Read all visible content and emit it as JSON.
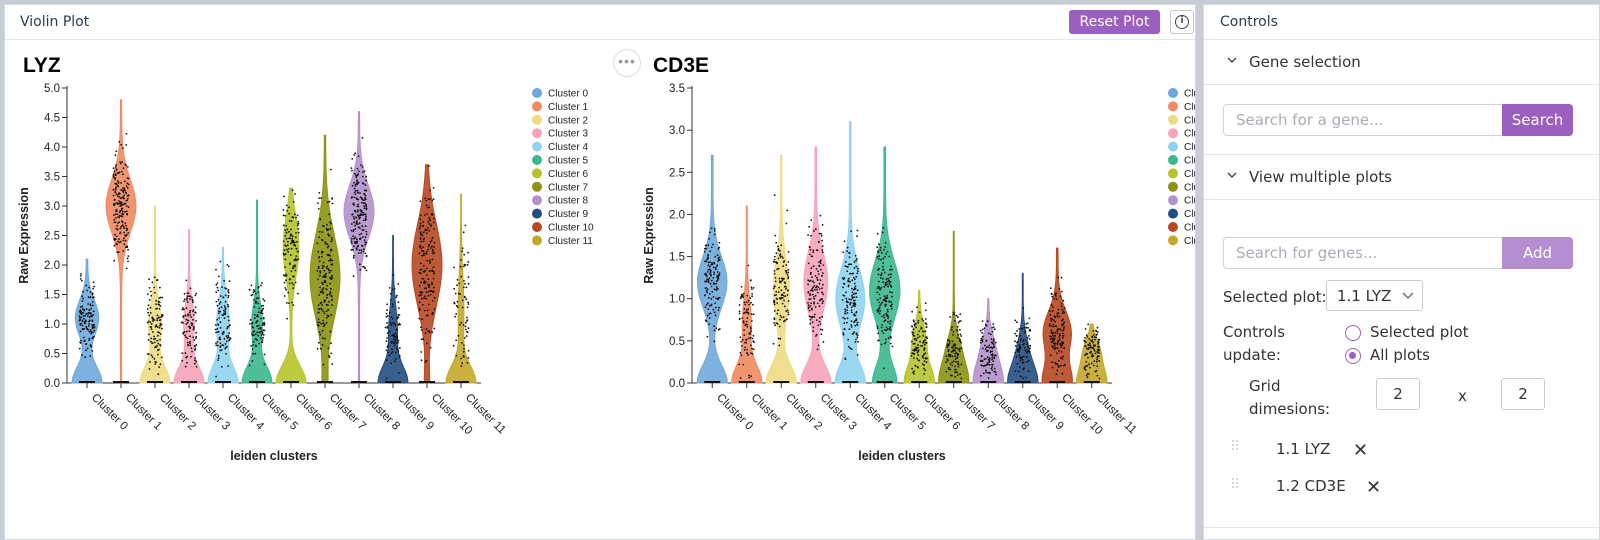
{
  "viewer": {
    "title": "Violin Plot",
    "reset_label": "Reset Plot",
    "info_icon": "info-icon",
    "more_icon": "more-horizontal-icon"
  },
  "controls": {
    "title": "Controls",
    "gene_selection": {
      "label": "Gene selection",
      "search_placeholder": "Search for a gene...",
      "search_label": "Search"
    },
    "multiple_plots": {
      "label": "View multiple plots",
      "search_placeholder": "Search for genes...",
      "add_label": "Add",
      "selected_plot_label": "Selected plot:",
      "selected_plot_value": "1.1 LYZ",
      "controls_update_line1": "Controls",
      "controls_update_line2": "update:",
      "radio_selected": "Selected plot",
      "radio_all": "All plots",
      "radio_value": "All plots",
      "grid_line1": "Grid",
      "grid_line2": "dimesions:",
      "grid_rows": "2",
      "grid_x": "x",
      "grid_cols": "2",
      "plots": [
        {
          "label": "1.1 LYZ"
        },
        {
          "label": "1.2 CD3E"
        }
      ],
      "remove_glyph": "✕"
    }
  },
  "chart_data": [
    {
      "type": "violin",
      "title": "LYZ",
      "xlabel": "leiden clusters",
      "ylabel": "Raw Expression",
      "ylim": [
        0,
        5
      ],
      "yticks": [
        "0.0",
        "0.5",
        "1.0",
        "1.5",
        "2.0",
        "2.5",
        "3.0",
        "3.5",
        "4.0",
        "4.5",
        "5.0"
      ],
      "categories": [
        "Cluster 0",
        "Cluster 1",
        "Cluster 2",
        "Cluster 3",
        "Cluster 4",
        "Cluster 5",
        "Cluster 6",
        "Cluster 7",
        "Cluster 8",
        "Cluster 9",
        "Cluster 10",
        "Cluster 11"
      ],
      "legend": [
        "Cluster 0",
        "Cluster 1",
        "Cluster 2",
        "Cluster 3",
        "Cluster 4",
        "Cluster 5",
        "Cluster 6",
        "Cluster 7",
        "Cluster 8",
        "Cluster 9",
        "Cluster 10",
        "Cluster 11"
      ],
      "colors": [
        "#6fa8dc",
        "#ef8a62",
        "#eedc82",
        "#f7a3b8",
        "#8fd3f0",
        "#3cb88e",
        "#b5c42a",
        "#8c9410",
        "#b291cc",
        "#234e82",
        "#b84823",
        "#c4a82a"
      ],
      "distributions": [
        {
          "max": 2.1,
          "center": 1.1,
          "spread": 0.3,
          "zero_frac": 0.35
        },
        {
          "max": 4.8,
          "center": 3.0,
          "spread": 0.45,
          "zero_frac": 0.0
        },
        {
          "max": 3.0,
          "center": 1.0,
          "spread": 0.35,
          "zero_frac": 0.5
        },
        {
          "max": 2.6,
          "center": 1.0,
          "spread": 0.35,
          "zero_frac": 0.55
        },
        {
          "max": 2.3,
          "center": 1.0,
          "spread": 0.4,
          "zero_frac": 0.5
        },
        {
          "max": 3.1,
          "center": 1.0,
          "spread": 0.35,
          "zero_frac": 0.55
        },
        {
          "max": 3.3,
          "center": 2.3,
          "spread": 0.5,
          "zero_frac": 0.45
        },
        {
          "max": 4.2,
          "center": 1.8,
          "spread": 0.7,
          "zero_frac": 0.05
        },
        {
          "max": 4.6,
          "center": 2.9,
          "spread": 0.45,
          "zero_frac": 0.0
        },
        {
          "max": 2.5,
          "center": 0.9,
          "spread": 0.4,
          "zero_frac": 0.6
        },
        {
          "max": 3.7,
          "center": 2.0,
          "spread": 0.7,
          "zero_frac": 0.05
        },
        {
          "max": 3.2,
          "center": 1.2,
          "spread": 0.6,
          "zero_frac": 0.7
        }
      ]
    },
    {
      "type": "violin",
      "title": "CD3E",
      "xlabel": "leiden clusters",
      "ylabel": "Raw Expression",
      "ylim": [
        0,
        3.5
      ],
      "yticks": [
        "0.0",
        "0.5",
        "1.0",
        "1.5",
        "2.0",
        "2.5",
        "3.0",
        "3.5"
      ],
      "categories": [
        "Cluster 0",
        "Cluster 1",
        "Cluster 2",
        "Cluster 3",
        "Cluster 4",
        "Cluster 5",
        "Cluster 6",
        "Cluster 7",
        "Cluster 8",
        "Cluster 9",
        "Cluster 10",
        "Cluster 11"
      ],
      "legend": [
        "Clust",
        "Clust",
        "Clust",
        "Clust",
        "Clust",
        "Clust",
        "Clust",
        "Clust",
        "Clust",
        "Clust",
        "Clust",
        "Clust"
      ],
      "colors": [
        "#6fa8dc",
        "#ef8a62",
        "#eedc82",
        "#f7a3b8",
        "#8fd3f0",
        "#3cb88e",
        "#b5c42a",
        "#8c9410",
        "#b291cc",
        "#234e82",
        "#b84823",
        "#c4a82a"
      ],
      "distributions": [
        {
          "max": 2.7,
          "center": 1.2,
          "spread": 0.3,
          "zero_frac": 0.3
        },
        {
          "max": 2.1,
          "center": 0.7,
          "spread": 0.3,
          "zero_frac": 0.6
        },
        {
          "max": 2.7,
          "center": 1.1,
          "spread": 0.35,
          "zero_frac": 0.45
        },
        {
          "max": 2.8,
          "center": 1.2,
          "spread": 0.35,
          "zero_frac": 0.35
        },
        {
          "max": 3.1,
          "center": 1.0,
          "spread": 0.35,
          "zero_frac": 0.3
        },
        {
          "max": 2.8,
          "center": 1.1,
          "spread": 0.35,
          "zero_frac": 0.25
        },
        {
          "max": 1.1,
          "center": 0.5,
          "spread": 0.2,
          "zero_frac": 0.5
        },
        {
          "max": 1.8,
          "center": 0.4,
          "spread": 0.2,
          "zero_frac": 0.5
        },
        {
          "max": 1.0,
          "center": 0.4,
          "spread": 0.2,
          "zero_frac": 0.5
        },
        {
          "max": 1.3,
          "center": 0.4,
          "spread": 0.2,
          "zero_frac": 0.6
        },
        {
          "max": 1.6,
          "center": 0.6,
          "spread": 0.25,
          "zero_frac": 0.3
        },
        {
          "max": 0.7,
          "center": 0.4,
          "spread": 0.15,
          "zero_frac": 0.5
        }
      ]
    }
  ]
}
